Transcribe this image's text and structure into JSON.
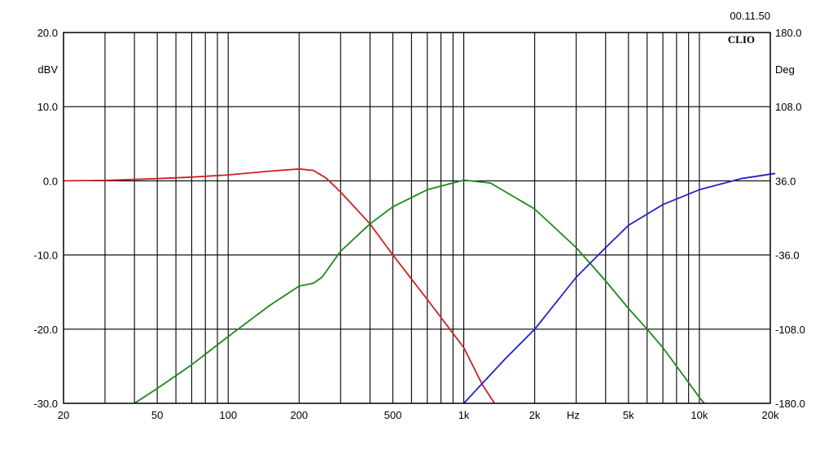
{
  "chart_data": {
    "type": "line",
    "title": "",
    "timestamp": "00.11.50",
    "brand": "CLIO",
    "xlabel": "Hz",
    "ylabel_left": "dBV",
    "ylabel_right": "Deg",
    "x_scale": "log",
    "xlim": [
      20,
      20000
    ],
    "ylim": [
      -30,
      20
    ],
    "ylim_right": [
      -180,
      180
    ],
    "x_ticks": [
      20,
      50,
      100,
      200,
      500,
      1000,
      2000,
      5000,
      10000,
      20000
    ],
    "x_tick_labels": [
      "20",
      "50",
      "100",
      "200",
      "500",
      "1k",
      "2k",
      "5k",
      "10k",
      "20k"
    ],
    "y_ticks_left": [
      20,
      10,
      0,
      -10,
      -20,
      -30
    ],
    "y_tick_labels_left": [
      "20.0",
      "10.0",
      "0.0",
      "-10.0",
      "-20.0",
      "-30.0"
    ],
    "y_tick_labels_right": [
      "180.0",
      "108.0",
      "36.0",
      "-36.0",
      "-108.0",
      "-180.0"
    ],
    "grid": true,
    "series": [
      {
        "color": "#cc2222",
        "x": [
          20,
          30,
          50,
          70,
          100,
          150,
          200,
          230,
          260,
          300,
          400,
          500,
          700,
          1000,
          1200,
          1350
        ],
        "y": [
          0.0,
          0.05,
          0.3,
          0.5,
          0.8,
          1.3,
          1.6,
          1.4,
          0.4,
          -1.5,
          -5.8,
          -10.0,
          -16.0,
          -22.5,
          -27.5,
          -30.0
        ]
      },
      {
        "color": "#1a8a1a",
        "x": [
          40,
          50,
          70,
          100,
          150,
          200,
          230,
          250,
          300,
          400,
          500,
          700,
          1000,
          1300,
          2000,
          3000,
          4000,
          5000,
          6000,
          7000,
          8000,
          9000,
          10000,
          10500
        ],
        "y": [
          -30.0,
          -28.0,
          -24.8,
          -21.0,
          -16.8,
          -14.2,
          -13.8,
          -13.0,
          -9.5,
          -5.8,
          -3.5,
          -1.2,
          0.1,
          -0.3,
          -3.8,
          -9.0,
          -13.5,
          -17.2,
          -20.0,
          -22.5,
          -25.0,
          -27.2,
          -29.2,
          -30.0
        ]
      },
      {
        "color": "#2222cc",
        "x": [
          1000,
          1500,
          2000,
          3000,
          4000,
          5000,
          7000,
          10000,
          15000,
          20000,
          21000
        ],
        "y": [
          -30.0,
          -24.0,
          -20.0,
          -13.0,
          -9.0,
          -6.0,
          -3.2,
          -1.2,
          0.3,
          0.9,
          1.0
        ]
      }
    ]
  }
}
